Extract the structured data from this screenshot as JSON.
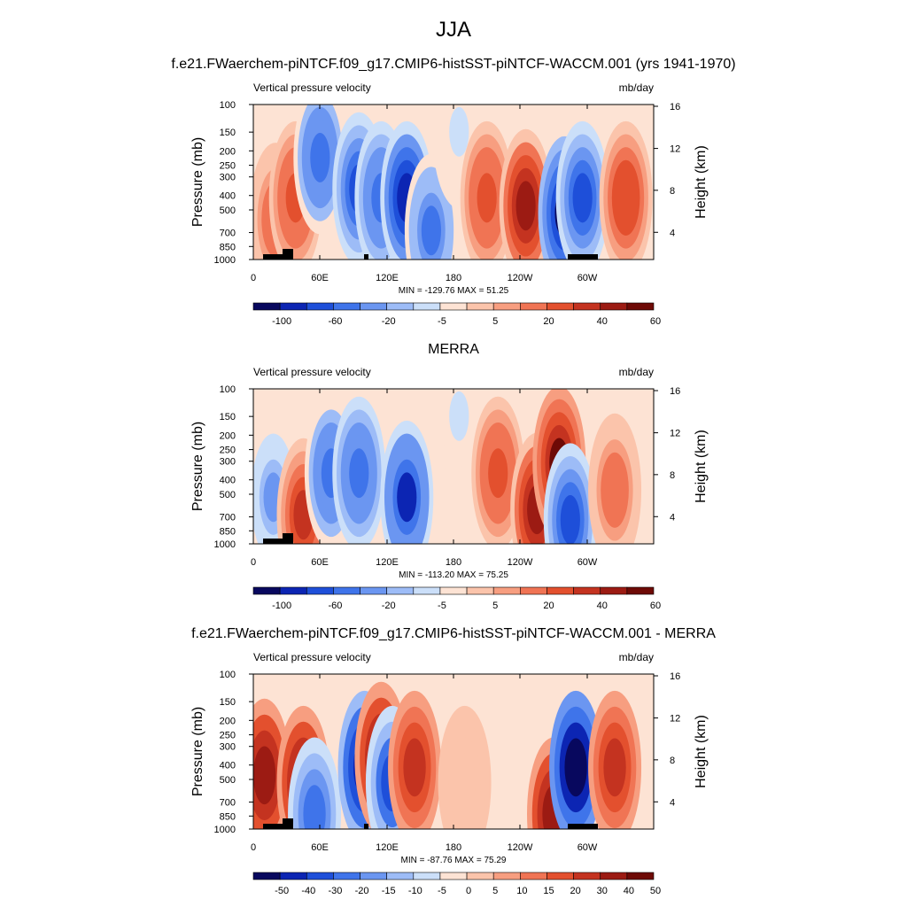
{
  "main_title": "JJA",
  "colors": {
    "scale_main": [
      "#08085e",
      "#0c25b3",
      "#1e4fd9",
      "#3f74ea",
      "#6b96f1",
      "#9dbcf7",
      "#cbdff9",
      "#fde3d4",
      "#fbc4ab",
      "#f79e80",
      "#f07454",
      "#e3502e",
      "#c43320",
      "#9c1b13",
      "#6e0a06"
    ],
    "scale_diff": [
      "#08085e",
      "#0c25b3",
      "#1e4fd9",
      "#3f74ea",
      "#6b96f1",
      "#9dbcf7",
      "#cbdff9",
      "#fde3d4",
      "#fbc4ab",
      "#f79e80",
      "#f07454",
      "#e3502e",
      "#c43320",
      "#9c1b13",
      "#6e0a06"
    ]
  },
  "chart_data": [
    {
      "type": "heatmap",
      "title": "f.e21.FWaerchem-piNTCF.f09_g17.CMIP6-histSST-piNTCF-WACCM.001 (yrs 1941-1970)",
      "left_string": "Vertical pressure velocity",
      "right_string": "mb/day",
      "ylabel": "Pressure (mb)",
      "y2label": "Height (km)",
      "xticks": [
        "0",
        "60E",
        "120E",
        "180",
        "120W",
        "60W"
      ],
      "yticks": [
        "100",
        "150",
        "200",
        "250",
        "300",
        "400",
        "500",
        "700",
        "850",
        "1000"
      ],
      "y2ticks": [
        "16",
        "12",
        "8",
        "4"
      ],
      "stats": "MIN = -129.76  MAX =  51.25",
      "colorbar_labels": [
        "-100",
        "-60",
        "-20",
        "-5",
        "5",
        "20",
        "40",
        "60"
      ],
      "field": [
        {
          "lon": 20,
          "p": 550,
          "v": 20
        },
        {
          "lon": 38,
          "p": 400,
          "v": 28
        },
        {
          "lon": 60,
          "p": 220,
          "v": -45
        },
        {
          "lon": 95,
          "p": 350,
          "v": -75
        },
        {
          "lon": 115,
          "p": 400,
          "v": -55
        },
        {
          "lon": 138,
          "p": 400,
          "v": -90
        },
        {
          "lon": 160,
          "p": 650,
          "v": -40
        },
        {
          "lon": 185,
          "p": 150,
          "v": -5
        },
        {
          "lon": 210,
          "p": 400,
          "v": 25
        },
        {
          "lon": 245,
          "p": 450,
          "v": 45
        },
        {
          "lon": 280,
          "p": 500,
          "v": -110
        },
        {
          "lon": 296,
          "p": 400,
          "v": -60
        },
        {
          "lon": 335,
          "p": 400,
          "v": 30
        }
      ]
    },
    {
      "type": "heatmap",
      "title": "MERRA",
      "left_string": "Vertical pressure velocity",
      "right_string": "mb/day",
      "ylabel": "Pressure (mb)",
      "y2label": "Height (km)",
      "xticks": [
        "0",
        "60E",
        "120E",
        "180",
        "120W",
        "60W"
      ],
      "yticks": [
        "100",
        "150",
        "200",
        "250",
        "300",
        "400",
        "500",
        "700",
        "850",
        "1000"
      ],
      "y2ticks": [
        "16",
        "12",
        "8",
        "4"
      ],
      "stats": "MIN = -113.20  MAX =  75.25",
      "colorbar_labels": [
        "-100",
        "-60",
        "-20",
        "-5",
        "5",
        "20",
        "40",
        "60"
      ],
      "field": [
        {
          "lon": 18,
          "p": 500,
          "v": -20
        },
        {
          "lon": 45,
          "p": 650,
          "v": 40
        },
        {
          "lon": 70,
          "p": 350,
          "v": -45
        },
        {
          "lon": 95,
          "p": 350,
          "v": -55
        },
        {
          "lon": 138,
          "p": 500,
          "v": -80
        },
        {
          "lon": 185,
          "p": 150,
          "v": -5
        },
        {
          "lon": 220,
          "p": 350,
          "v": 25
        },
        {
          "lon": 255,
          "p": 600,
          "v": 45
        },
        {
          "lon": 275,
          "p": 300,
          "v": 55
        },
        {
          "lon": 285,
          "p": 700,
          "v": -75
        },
        {
          "lon": 325,
          "p": 450,
          "v": 15
        }
      ]
    },
    {
      "type": "heatmap",
      "title": "f.e21.FWaerchem-piNTCF.f09_g17.CMIP6-histSST-piNTCF-WACCM.001 - MERRA",
      "left_string": "Vertical pressure velocity",
      "right_string": "mb/day",
      "ylabel": "Pressure (mb)",
      "y2label": "Height (km)",
      "xticks": [
        "0",
        "60E",
        "120E",
        "180",
        "120W",
        "60W"
      ],
      "yticks": [
        "100",
        "150",
        "200",
        "250",
        "300",
        "400",
        "500",
        "700",
        "850",
        "1000"
      ],
      "y2ticks": [
        "16",
        "12",
        "8",
        "4"
      ],
      "stats": "MIN = -87.76  MAX =  75.29",
      "colorbar_labels": [
        "-50",
        "-40",
        "-30",
        "-20",
        "-15",
        "-10",
        "-5",
        "0",
        "5",
        "10",
        "15",
        "20",
        "30",
        "40",
        "50"
      ],
      "field": [
        {
          "lon": 10,
          "p": 450,
          "v": 35
        },
        {
          "lon": 45,
          "p": 500,
          "v": 35
        },
        {
          "lon": 55,
          "p": 800,
          "v": -25
        },
        {
          "lon": 100,
          "p": 400,
          "v": -45
        },
        {
          "lon": 115,
          "p": 350,
          "v": 35
        },
        {
          "lon": 125,
          "p": 500,
          "v": -30
        },
        {
          "lon": 145,
          "p": 400,
          "v": 25
        },
        {
          "lon": 190,
          "p": 500,
          "v": 5
        },
        {
          "lon": 270,
          "p": 800,
          "v": 35
        },
        {
          "lon": 290,
          "p": 400,
          "v": -60
        },
        {
          "lon": 325,
          "p": 400,
          "v": 25
        }
      ]
    }
  ]
}
